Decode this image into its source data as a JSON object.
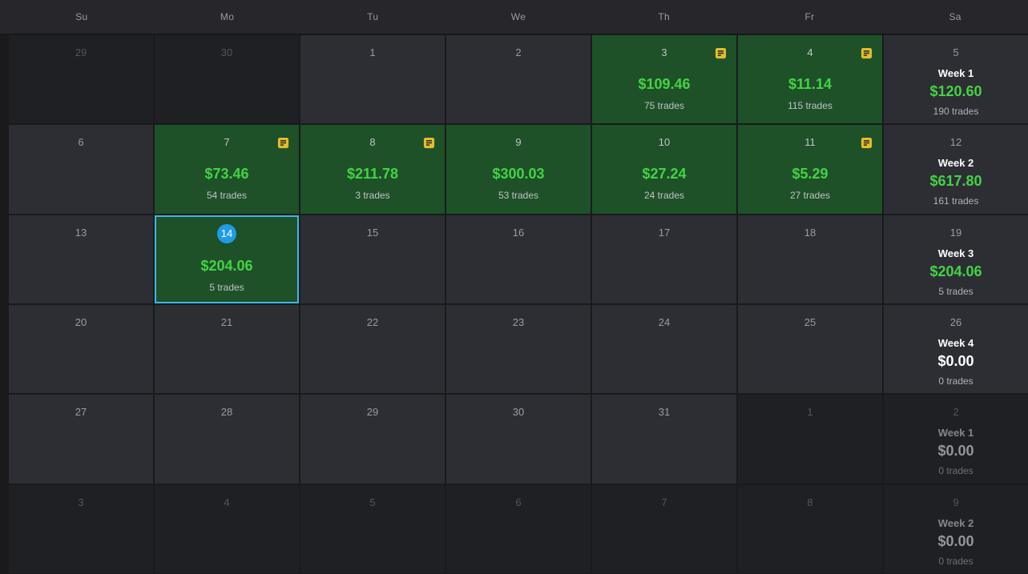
{
  "header": {
    "days": [
      "Su",
      "Mo",
      "Tu",
      "We",
      "Th",
      "Fr",
      "Sa"
    ]
  },
  "colors": {
    "profit_green_text": "#45d245",
    "profit_green_cell": "#1e5128",
    "selected_border_blue": "#3fb6e8",
    "selected_badge_blue": "#1f9ce8",
    "note_icon_yellow": "#e3bd2c",
    "cell_background": "#2d2e34",
    "out_of_month_background": "#1f2024"
  },
  "weeks": [
    {
      "days": [
        {
          "num": "29",
          "dim": true
        },
        {
          "num": "30",
          "dim": true
        },
        {
          "num": "1"
        },
        {
          "num": "2"
        },
        {
          "num": "3",
          "green": true,
          "note": true,
          "pnl": "$109.46",
          "trades": "75 trades"
        },
        {
          "num": "4",
          "green": true,
          "note": true,
          "pnl": "$11.14",
          "trades": "115 trades"
        }
      ],
      "summary": {
        "num": "5",
        "label": "Week 1",
        "total": "$120.60",
        "trades": "190 trades",
        "positive": true
      }
    },
    {
      "days": [
        {
          "num": "6"
        },
        {
          "num": "7",
          "green": true,
          "note": true,
          "pnl": "$73.46",
          "trades": "54 trades"
        },
        {
          "num": "8",
          "green": true,
          "note": true,
          "pnl": "$211.78",
          "trades": "3 trades"
        },
        {
          "num": "9",
          "green": true,
          "pnl": "$300.03",
          "trades": "53 trades"
        },
        {
          "num": "10",
          "green": true,
          "pnl": "$27.24",
          "trades": "24 trades"
        },
        {
          "num": "11",
          "green": true,
          "note": true,
          "pnl": "$5.29",
          "trades": "27 trades"
        }
      ],
      "summary": {
        "num": "12",
        "label": "Week 2",
        "total": "$617.80",
        "trades": "161 trades",
        "positive": true
      }
    },
    {
      "days": [
        {
          "num": "13"
        },
        {
          "num": "14",
          "green": true,
          "selected": true,
          "pnl": "$204.06",
          "trades": "5 trades"
        },
        {
          "num": "15"
        },
        {
          "num": "16"
        },
        {
          "num": "17"
        },
        {
          "num": "18"
        }
      ],
      "summary": {
        "num": "19",
        "label": "Week 3",
        "total": "$204.06",
        "trades": "5 trades",
        "positive": true
      }
    },
    {
      "days": [
        {
          "num": "20"
        },
        {
          "num": "21"
        },
        {
          "num": "22"
        },
        {
          "num": "23"
        },
        {
          "num": "24"
        },
        {
          "num": "25"
        }
      ],
      "summary": {
        "num": "26",
        "label": "Week 4",
        "total": "$0.00",
        "trades": "0 trades",
        "zero": true
      }
    },
    {
      "days": [
        {
          "num": "27"
        },
        {
          "num": "28"
        },
        {
          "num": "29"
        },
        {
          "num": "30"
        },
        {
          "num": "31"
        },
        {
          "num": "1",
          "dim": true
        }
      ],
      "summary": {
        "num": "2",
        "label": "Week 1",
        "total": "$0.00",
        "trades": "0 trades",
        "dim": true
      }
    },
    {
      "days": [
        {
          "num": "3",
          "dim": true
        },
        {
          "num": "4",
          "dim": true
        },
        {
          "num": "5",
          "dim": true
        },
        {
          "num": "6",
          "dim": true
        },
        {
          "num": "7",
          "dim": true
        },
        {
          "num": "8",
          "dim": true
        }
      ],
      "summary": {
        "num": "9",
        "label": "Week 2",
        "total": "$0.00",
        "trades": "0 trades",
        "dim": true
      }
    }
  ]
}
